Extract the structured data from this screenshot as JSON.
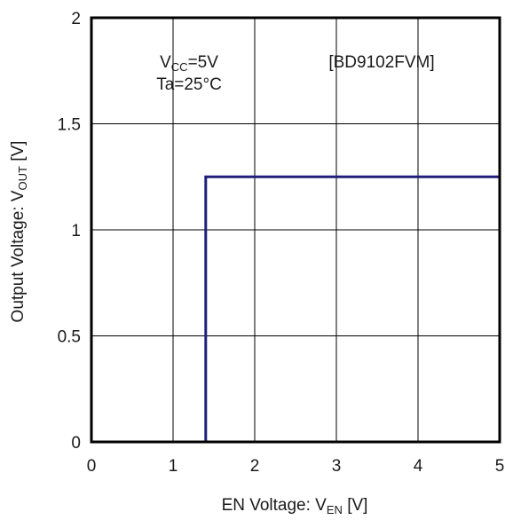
{
  "chart_data": {
    "type": "line",
    "title": "",
    "xlabel": {
      "main": "EN Voltage: V",
      "sub": "EN",
      "suffix": " [V]"
    },
    "ylabel": {
      "main": "Output Voltage: V",
      "sub": "OUT",
      "suffix": " [V]"
    },
    "xlim": [
      0,
      5
    ],
    "ylim": [
      0,
      2
    ],
    "x_ticks": [
      0,
      1,
      2,
      3,
      4,
      5
    ],
    "x_tick_labels": [
      "0",
      "1",
      "2",
      "3",
      "4",
      "5"
    ],
    "y_ticks": [
      0,
      0.5,
      1,
      1.5,
      2
    ],
    "y_tick_labels": [
      "0",
      "0.5",
      "1",
      "1.5",
      "2"
    ],
    "grid": true,
    "series": [
      {
        "color": "#1f1f7a",
        "x": [
          0,
          1.4,
          1.4,
          5
        ],
        "y": [
          0,
          0,
          1.25,
          1.25
        ]
      }
    ],
    "annotations": {
      "condition_vcc": {
        "main": "V",
        "sub": "CC",
        "suffix": "=5V"
      },
      "condition_ta": "Ta=25°C",
      "part_number": "[BD9102FVM]"
    }
  }
}
